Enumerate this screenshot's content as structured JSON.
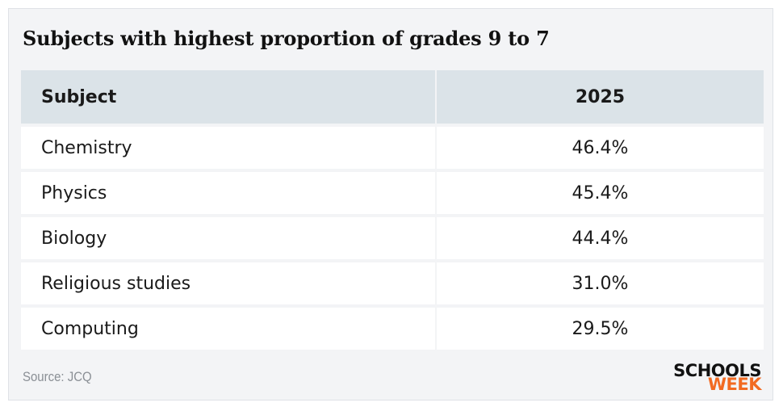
{
  "title": "Subjects with highest proportion of grades 9 to 7",
  "table": {
    "headers": [
      "Subject",
      "2025"
    ],
    "rows": [
      {
        "subject": "Chemistry",
        "value": "46.4%"
      },
      {
        "subject": "Physics",
        "value": "45.4%"
      },
      {
        "subject": "Biology",
        "value": "44.4%"
      },
      {
        "subject": "Religious studies",
        "value": "31.0%"
      },
      {
        "subject": "Computing",
        "value": "29.5%"
      }
    ]
  },
  "chart_data": {
    "type": "table",
    "title": "Subjects with highest proportion of grades 9 to 7",
    "columns": [
      "Subject",
      "2025"
    ],
    "categories": [
      "Chemistry",
      "Physics",
      "Biology",
      "Religious studies",
      "Computing"
    ],
    "values": [
      46.4,
      45.4,
      44.4,
      31.0,
      29.5
    ]
  },
  "source": "Source: JCQ",
  "logo": {
    "line1": "SCHOOLS",
    "line2": "WEEK"
  },
  "colors": {
    "header_bg": "#dbe3e8",
    "card_bg": "#f3f4f6",
    "logo_accent": "#f26a21"
  }
}
